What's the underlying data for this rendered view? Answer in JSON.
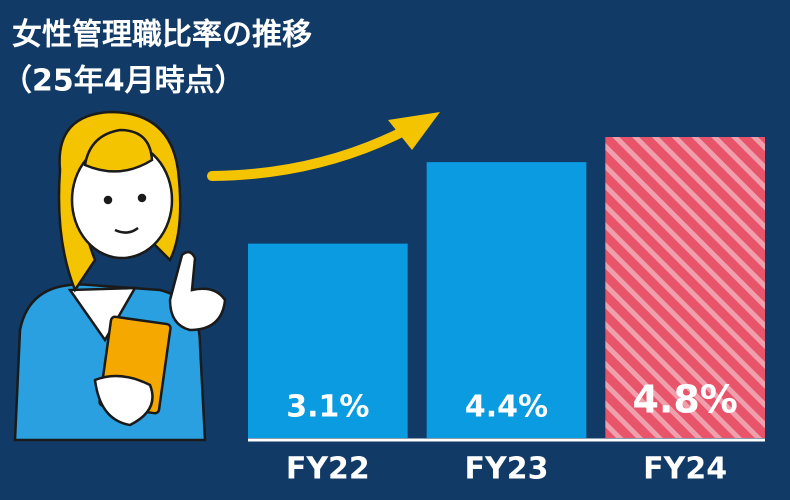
{
  "chart_data": {
    "type": "bar",
    "title": "女性管理職比率の推移",
    "subtitle": "（25年4月時点）",
    "categories": [
      "FY22",
      "FY23",
      "FY24"
    ],
    "values": [
      3.1,
      4.4,
      4.8
    ],
    "value_labels": [
      "3.1%",
      "4.4%",
      "4.8%"
    ],
    "colors": [
      "#0a9be0",
      "#0a9be0",
      "#e8546a"
    ],
    "hatch": [
      false,
      false,
      true
    ]
  }
}
